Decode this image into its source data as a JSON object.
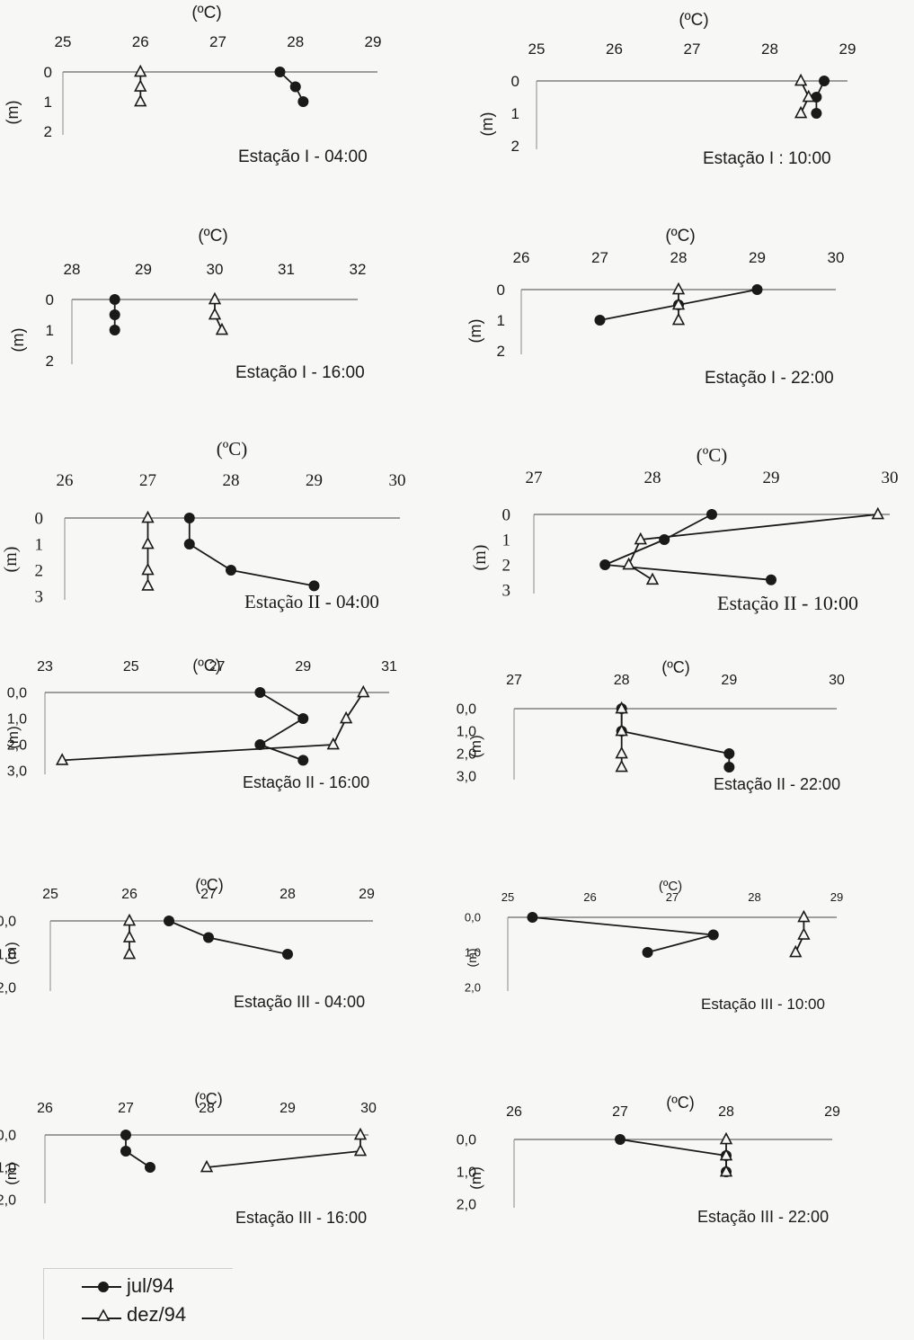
{
  "legend": {
    "series": [
      "jul/94",
      "dez/94"
    ]
  },
  "colors": {
    "ink": "#1a1a1a",
    "axis": "#444444",
    "background": "#f7f7f5"
  },
  "chart_data": [
    {
      "type": "line",
      "title": "Estação I - 04:00",
      "xlabel": "(ºC)",
      "ylabel": "(m)",
      "x_ticks": [
        "25",
        "26",
        "27",
        "28",
        "29"
      ],
      "y_ticks": [
        "0",
        "1",
        "2"
      ],
      "xlim": [
        25,
        29
      ],
      "ylim": [
        0,
        2
      ],
      "series": [
        {
          "name": "jul/94",
          "points": [
            [
              27.8,
              0
            ],
            [
              28.0,
              0.5
            ],
            [
              28.1,
              1
            ]
          ]
        },
        {
          "name": "dez/94",
          "points": [
            [
              26,
              0
            ],
            [
              26,
              0.5
            ],
            [
              26,
              1
            ]
          ]
        }
      ]
    },
    {
      "type": "line",
      "title": "Estação I : 10:00",
      "xlabel": "(ºC)",
      "ylabel": "(m)",
      "x_ticks": [
        "25",
        "26",
        "27",
        "28",
        "29"
      ],
      "y_ticks": [
        "0",
        "1",
        "2"
      ],
      "xlim": [
        25,
        29
      ],
      "ylim": [
        0,
        2
      ],
      "series": [
        {
          "name": "jul/94",
          "points": [
            [
              28.7,
              0
            ],
            [
              28.6,
              0.5
            ],
            [
              28.6,
              1
            ]
          ]
        },
        {
          "name": "dez/94",
          "points": [
            [
              28.4,
              0
            ],
            [
              28.5,
              0.5
            ],
            [
              28.4,
              1
            ]
          ]
        }
      ]
    },
    {
      "type": "line",
      "title": "Estação I - 16:00",
      "xlabel": "(ºC)",
      "ylabel": "(m)",
      "x_ticks": [
        "28",
        "29",
        "30",
        "31",
        "32"
      ],
      "y_ticks": [
        "0",
        "1",
        "2"
      ],
      "xlim": [
        28,
        32
      ],
      "ylim": [
        0,
        2
      ],
      "series": [
        {
          "name": "jul/94",
          "points": [
            [
              28.6,
              0
            ],
            [
              28.6,
              0.5
            ],
            [
              28.6,
              1
            ]
          ]
        },
        {
          "name": "dez/94",
          "points": [
            [
              30,
              0
            ],
            [
              30,
              0.5
            ],
            [
              30.1,
              1
            ]
          ]
        }
      ]
    },
    {
      "type": "line",
      "title": "Estação I - 22:00",
      "xlabel": "(ºC)",
      "ylabel": "(m)",
      "x_ticks": [
        "26",
        "27",
        "28",
        "29",
        "30"
      ],
      "y_ticks": [
        "0",
        "1",
        "2"
      ],
      "xlim": [
        26,
        30
      ],
      "ylim": [
        0,
        2
      ],
      "series": [
        {
          "name": "jul/94",
          "points": [
            [
              29,
              0
            ],
            [
              28,
              0.5
            ],
            [
              27,
              1
            ]
          ]
        },
        {
          "name": "dez/94",
          "points": [
            [
              28,
              0
            ],
            [
              28,
              0.5
            ],
            [
              28,
              1
            ]
          ]
        }
      ]
    },
    {
      "type": "line",
      "title": "Estação II - 04:00",
      "xlabel": "(ºC)",
      "ylabel": "(m)",
      "x_ticks": [
        "26",
        "27",
        "28",
        "29",
        "30"
      ],
      "y_ticks": [
        "0",
        "1",
        "2",
        "3"
      ],
      "xlim": [
        26,
        30
      ],
      "ylim": [
        0,
        3
      ],
      "series": [
        {
          "name": "jul/94",
          "points": [
            [
              27.5,
              0
            ],
            [
              27.5,
              1
            ],
            [
              28.0,
              2
            ],
            [
              29.0,
              2.6
            ]
          ]
        },
        {
          "name": "dez/94",
          "points": [
            [
              27,
              0
            ],
            [
              27,
              1
            ],
            [
              27,
              2
            ],
            [
              27,
              2.6
            ]
          ]
        }
      ]
    },
    {
      "type": "line",
      "title": "Estação II - 10:00",
      "xlabel": "(ºC)",
      "ylabel": "(m)",
      "x_ticks": [
        "27",
        "28",
        "29",
        "30"
      ],
      "y_ticks": [
        "0",
        "1",
        "2",
        "3"
      ],
      "xlim": [
        27,
        30
      ],
      "ylim": [
        0,
        3
      ],
      "series": [
        {
          "name": "jul/94",
          "points": [
            [
              28.5,
              0
            ],
            [
              28.1,
              1
            ],
            [
              27.6,
              2
            ],
            [
              29.0,
              2.6
            ]
          ]
        },
        {
          "name": "dez/94",
          "points": [
            [
              29.9,
              0
            ],
            [
              27.9,
              1
            ],
            [
              27.8,
              2
            ],
            [
              28.0,
              2.6
            ]
          ]
        }
      ]
    },
    {
      "type": "line",
      "title": "Estação II - 16:00",
      "xlabel": "(ºC)",
      "ylabel": "(m)",
      "x_ticks": [
        "23",
        "25",
        "27",
        "29",
        "31"
      ],
      "y_ticks": [
        "0,0",
        "1,0",
        "2,0",
        "3,0"
      ],
      "xlim": [
        23,
        31
      ],
      "ylim": [
        0,
        3
      ],
      "series": [
        {
          "name": "jul/94",
          "points": [
            [
              28,
              0
            ],
            [
              29,
              1
            ],
            [
              28,
              2
            ],
            [
              29,
              2.6
            ]
          ]
        },
        {
          "name": "dez/94",
          "points": [
            [
              30.4,
              0
            ],
            [
              30.0,
              1
            ],
            [
              29.7,
              2
            ],
            [
              23.4,
              2.6
            ]
          ]
        }
      ]
    },
    {
      "type": "line",
      "title": "Estação II - 22:00",
      "xlabel": "(ºC)",
      "ylabel": "(m)",
      "x_ticks": [
        "27",
        "28",
        "29",
        "30"
      ],
      "y_ticks": [
        "0,0",
        "1,0",
        "2,0",
        "3,0"
      ],
      "xlim": [
        27,
        30
      ],
      "ylim": [
        0,
        3
      ],
      "series": [
        {
          "name": "jul/94",
          "points": [
            [
              28,
              0
            ],
            [
              28,
              1
            ],
            [
              29,
              2
            ],
            [
              29,
              2.6
            ]
          ]
        },
        {
          "name": "dez/94",
          "points": [
            [
              28,
              0
            ],
            [
              28,
              1
            ],
            [
              28,
              2
            ],
            [
              28,
              2.6
            ]
          ]
        }
      ]
    },
    {
      "type": "line",
      "title": "Estação III - 04:00",
      "xlabel": "(ºC)",
      "ylabel": "(m)",
      "x_ticks": [
        "25",
        "26",
        "27",
        "28",
        "29"
      ],
      "y_ticks": [
        "0,0",
        "1,0",
        "2,0"
      ],
      "xlim": [
        25,
        29
      ],
      "ylim": [
        0,
        2
      ],
      "series": [
        {
          "name": "jul/94",
          "points": [
            [
              26.5,
              0
            ],
            [
              27.0,
              0.5
            ],
            [
              28.0,
              1
            ]
          ]
        },
        {
          "name": "dez/94",
          "points": [
            [
              26,
              0
            ],
            [
              26,
              0.5
            ],
            [
              26,
              1
            ]
          ]
        }
      ]
    },
    {
      "type": "line",
      "title": "Estação III - 10:00",
      "xlabel": "(ºC)",
      "ylabel": "(m)",
      "x_ticks": [
        "25",
        "26",
        "27",
        "28",
        "29"
      ],
      "y_ticks": [
        "0,0",
        "1,0",
        "2,0"
      ],
      "xlim": [
        25,
        29
      ],
      "ylim": [
        0,
        2
      ],
      "series": [
        {
          "name": "jul/94",
          "points": [
            [
              25.3,
              0
            ],
            [
              27.5,
              0.5
            ],
            [
              26.7,
              1
            ]
          ]
        },
        {
          "name": "dez/94",
          "points": [
            [
              28.6,
              0
            ],
            [
              28.6,
              0.5
            ],
            [
              28.5,
              1
            ]
          ]
        }
      ]
    },
    {
      "type": "line",
      "title": "Estação III - 16:00",
      "xlabel": "(ºC)",
      "ylabel": "(m)",
      "x_ticks": [
        "26",
        "27",
        "28",
        "29",
        "30"
      ],
      "y_ticks": [
        "0,0",
        "1,0",
        "2,0"
      ],
      "xlim": [
        26,
        30
      ],
      "ylim": [
        0,
        2
      ],
      "series": [
        {
          "name": "jul/94",
          "points": [
            [
              27,
              0
            ],
            [
              27,
              0.5
            ],
            [
              27.3,
              1
            ]
          ]
        },
        {
          "name": "dez/94",
          "points": [
            [
              29.9,
              0
            ],
            [
              29.9,
              0.5
            ],
            [
              28,
              1
            ]
          ]
        }
      ]
    },
    {
      "type": "line",
      "title": "Estação III - 22:00",
      "xlabel": "(ºC)",
      "ylabel": "(m)",
      "x_ticks": [
        "26",
        "27",
        "28",
        "29"
      ],
      "y_ticks": [
        "0,0",
        "1,0",
        "2,0"
      ],
      "xlim": [
        26,
        29
      ],
      "ylim": [
        0,
        2
      ],
      "series": [
        {
          "name": "jul/94",
          "points": [
            [
              27,
              0
            ],
            [
              28,
              0.5
            ],
            [
              28,
              1
            ]
          ]
        },
        {
          "name": "dez/94",
          "points": [
            [
              28,
              0
            ],
            [
              28,
              0.5
            ],
            [
              28,
              1
            ]
          ]
        }
      ]
    }
  ]
}
